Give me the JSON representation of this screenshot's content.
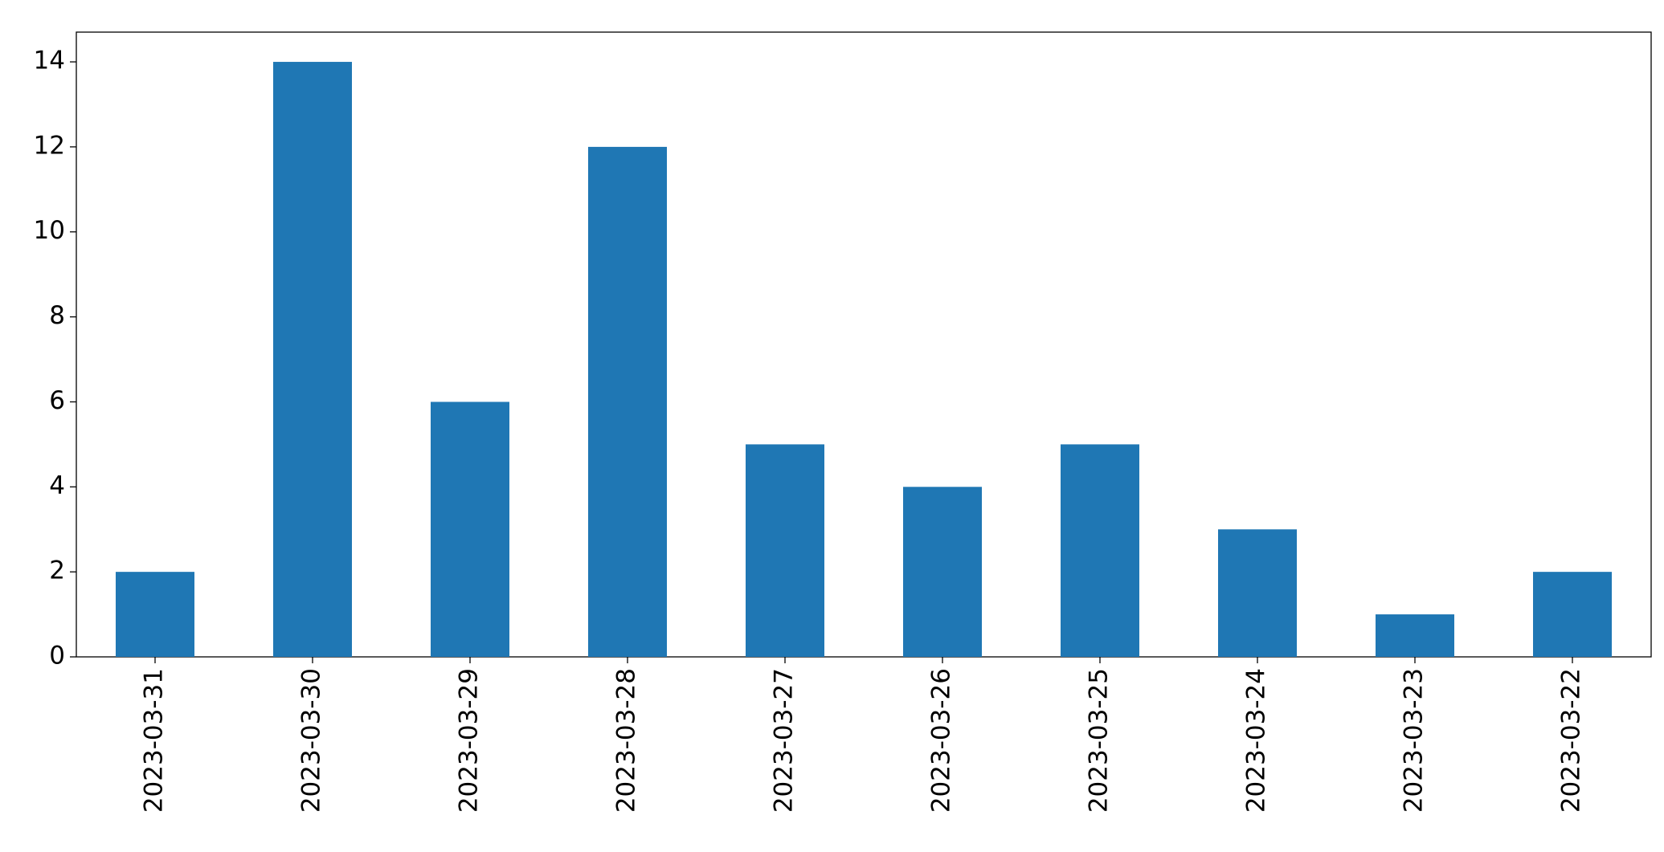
{
  "chart_data": {
    "type": "bar",
    "categories": [
      "2023-03-31",
      "2023-03-30",
      "2023-03-29",
      "2023-03-28",
      "2023-03-27",
      "2023-03-26",
      "2023-03-25",
      "2023-03-24",
      "2023-03-23",
      "2023-03-22"
    ],
    "values": [
      2,
      14,
      6,
      12,
      5,
      4,
      5,
      3,
      1,
      2
    ],
    "color": "#1f77b4",
    "ylim": [
      0,
      14.7
    ],
    "yticks": [
      0,
      2,
      4,
      6,
      8,
      10,
      12,
      14
    ],
    "grid": false
  }
}
